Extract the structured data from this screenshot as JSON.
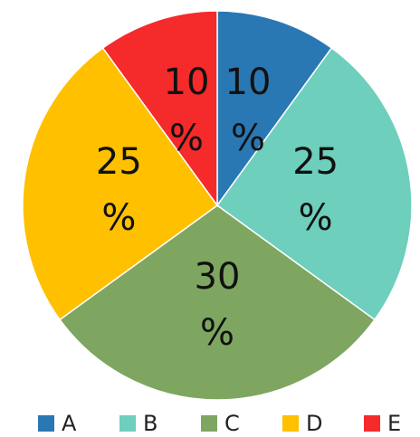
{
  "chart_data": {
    "type": "pie",
    "categories": [
      "A",
      "B",
      "C",
      "D",
      "E"
    ],
    "values": [
      10,
      25,
      30,
      25,
      10
    ],
    "value_labels": [
      "10 %",
      "25 %",
      "30 %",
      "25 %",
      "10 %"
    ],
    "colors": [
      "#2a78b3",
      "#6dcfbc",
      "#7ea660",
      "#ffc000",
      "#f52a2a"
    ],
    "legend": "bottom"
  }
}
